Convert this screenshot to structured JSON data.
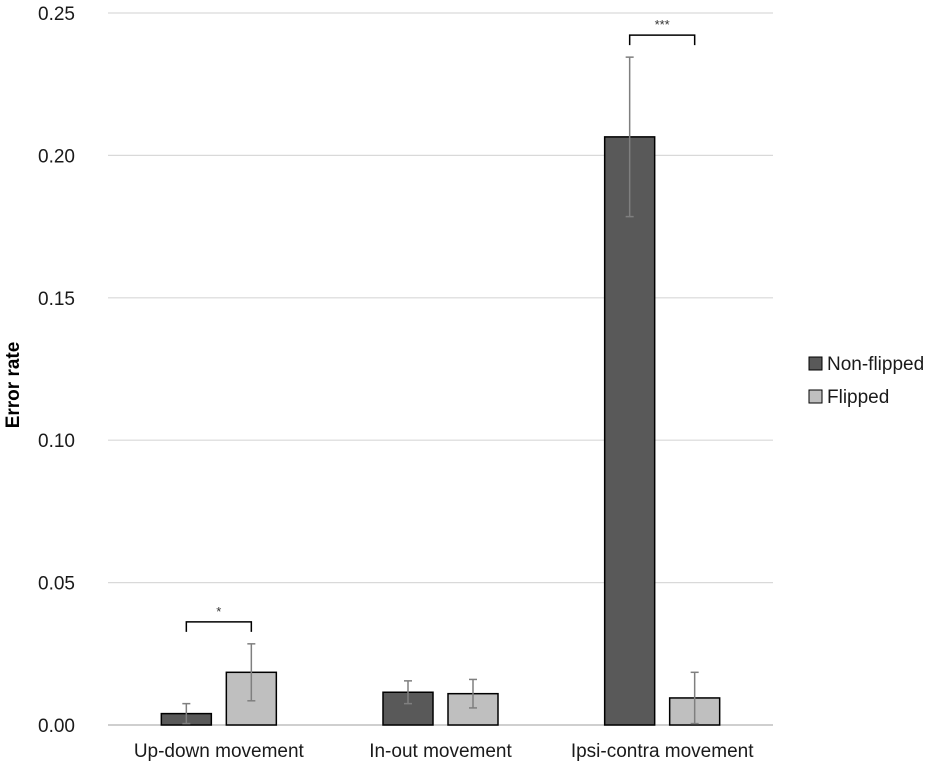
{
  "chart_data": {
    "type": "bar",
    "title": "",
    "xlabel": "",
    "ylabel": "Error rate",
    "ylim": [
      0,
      0.25
    ],
    "yticks": [
      "0.00",
      "0.05",
      "0.10",
      "0.15",
      "0.20",
      "0.25"
    ],
    "grid": true,
    "legend_position": "right",
    "categories": [
      "Up-down movement",
      "In-out movement",
      "Ipsi-contra movement"
    ],
    "series": [
      {
        "name": "Non-flipped",
        "color": "#595959",
        "values": [
          0.004,
          0.0115,
          0.2065
        ],
        "error": [
          0.0035,
          0.004,
          0.028
        ]
      },
      {
        "name": "Flipped",
        "color": "#bfbfbf",
        "values": [
          0.0185,
          0.011,
          0.0095
        ],
        "error": [
          0.01,
          0.005,
          0.009
        ]
      }
    ],
    "annotations": [
      {
        "category_index": 0,
        "text": "*"
      },
      {
        "category_index": 2,
        "text": "***"
      }
    ]
  }
}
